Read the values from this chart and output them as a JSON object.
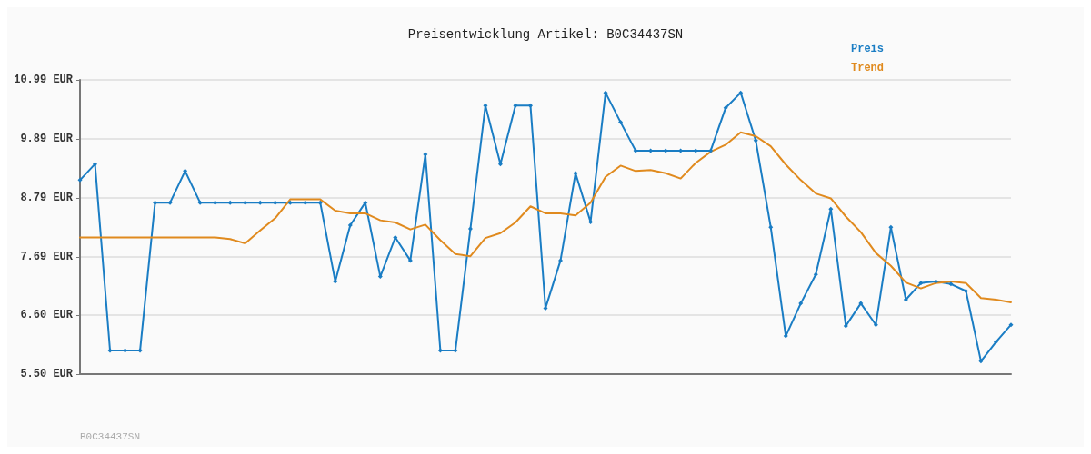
{
  "chart_data": {
    "type": "line",
    "title": "Preisentwicklung Artikel: B0C34437SN",
    "annotations": [
      "B0C34437SN"
    ],
    "categories": [
      null,
      null,
      null,
      null,
      null,
      null,
      null,
      null,
      null,
      null,
      null,
      null,
      null,
      null,
      null,
      null,
      null,
      null,
      null,
      null,
      null,
      null,
      null,
      null,
      null,
      null,
      null,
      null,
      null,
      null,
      null,
      null,
      null,
      null,
      null,
      null,
      null,
      null,
      null,
      null,
      null,
      null,
      null,
      null,
      null,
      null,
      null,
      null,
      null,
      null,
      null,
      null,
      null,
      null,
      null,
      null,
      null,
      null,
      null,
      null,
      null,
      null,
      null
    ],
    "series": [
      {
        "name": "Preis",
        "color": "#1a7dc4",
        "marker": "diamond",
        "values": [
          9.12,
          9.42,
          5.94,
          5.94,
          5.94,
          8.7,
          8.7,
          9.29,
          8.7,
          8.7,
          8.7,
          8.7,
          8.7,
          8.7,
          8.7,
          8.7,
          8.7,
          7.23,
          8.28,
          8.7,
          7.32,
          8.05,
          7.62,
          9.6,
          5.94,
          5.94,
          8.21,
          10.51,
          9.42,
          10.51,
          10.51,
          6.73,
          7.62,
          9.25,
          8.34,
          10.75,
          10.2,
          9.67,
          9.67,
          9.67,
          9.67,
          9.67,
          9.67,
          10.47,
          10.75,
          9.86,
          8.24,
          6.21,
          6.82,
          7.36,
          8.58,
          6.4,
          6.82,
          6.42,
          8.24,
          6.89,
          7.2,
          7.23,
          7.18,
          7.05,
          5.74,
          6.1,
          6.42
        ]
      },
      {
        "name": "Trend",
        "color": "#e08a1e",
        "marker": "none",
        "values": [
          8.05,
          8.05,
          8.05,
          8.05,
          8.05,
          8.05,
          8.05,
          8.05,
          8.05,
          8.05,
          8.02,
          7.94,
          8.18,
          8.41,
          8.76,
          8.76,
          8.76,
          8.55,
          8.5,
          8.5,
          8.37,
          8.33,
          8.2,
          8.29,
          8.0,
          7.74,
          7.7,
          8.04,
          8.13,
          8.33,
          8.63,
          8.5,
          8.5,
          8.46,
          8.7,
          9.18,
          9.39,
          9.29,
          9.31,
          9.25,
          9.15,
          9.44,
          9.65,
          9.78,
          10.01,
          9.94,
          9.75,
          9.41,
          9.12,
          8.87,
          8.78,
          8.44,
          8.15,
          7.76,
          7.52,
          7.21,
          7.1,
          7.2,
          7.23,
          7.2,
          6.92,
          6.89,
          6.84
        ]
      }
    ],
    "ylim": [
      5.5,
      10.99
    ],
    "yticks": [
      {
        "value": 5.5,
        "label": "5.50 EUR"
      },
      {
        "value": 6.6,
        "label": "6.60 EUR"
      },
      {
        "value": 7.69,
        "label": "7.69 EUR"
      },
      {
        "value": 8.79,
        "label": "8.79 EUR"
      },
      {
        "value": 9.89,
        "label": "9.89 EUR"
      },
      {
        "value": 10.99,
        "label": "10.99 EUR"
      }
    ],
    "grid": "y",
    "legend": "top right",
    "line_style": "solid"
  }
}
